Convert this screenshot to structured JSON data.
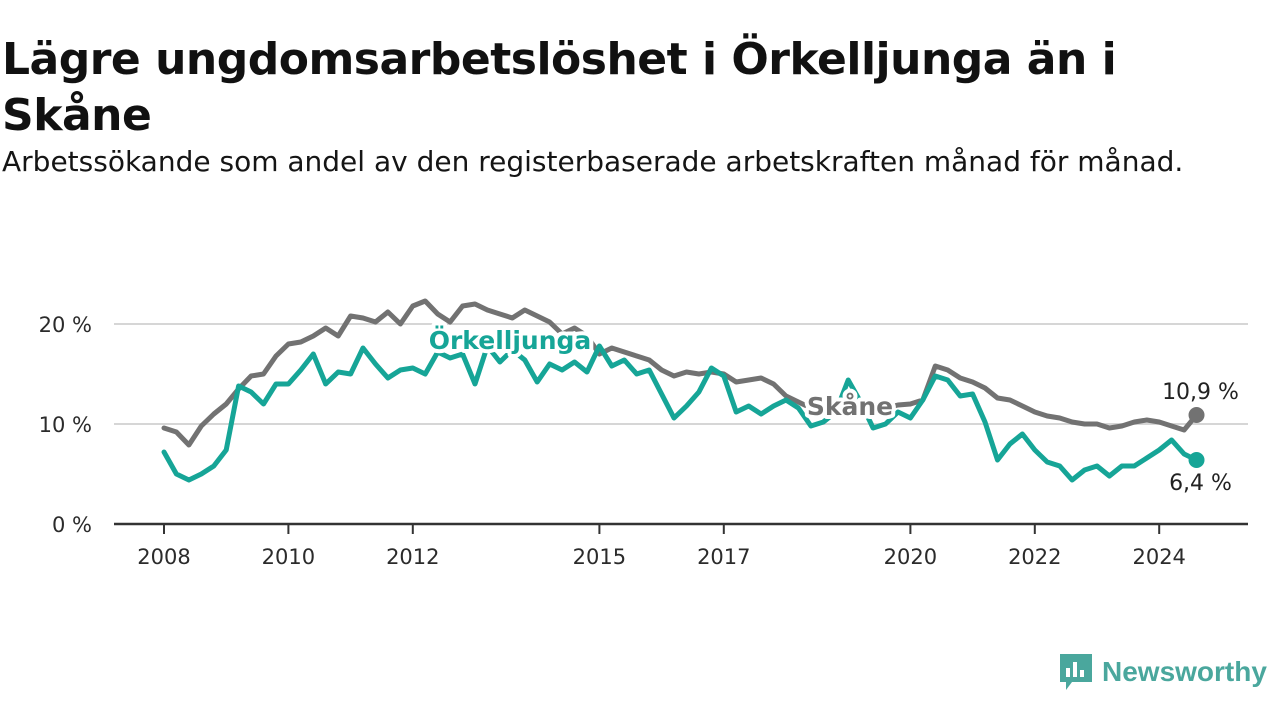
{
  "title": "Lägre ungdomsarbetslöshet i Örkelljunga än i Skåne",
  "subtitle": "Arbetssökande som andel av den registerbaserade arbetskraften månad för månad.",
  "brand": {
    "name": "Newsworthy",
    "color": "#4aa79d"
  },
  "chart_data": {
    "type": "line",
    "title": "Lägre ungdomsarbetslöshet i Örkelljunga än i Skåne",
    "xlabel": "",
    "ylabel": "",
    "xlim": [
      2008.0,
      2025.0
    ],
    "ylim": [
      0,
      23
    ],
    "y_ticks": [
      0,
      10,
      20
    ],
    "y_tick_labels": [
      "0 %",
      "10 %",
      "20 %"
    ],
    "x_ticks": [
      2008,
      2010,
      2012,
      2015,
      2017,
      2020,
      2022,
      2024
    ],
    "x_tick_labels": [
      "2008",
      "2010",
      "2012",
      "2015",
      "2017",
      "2020",
      "2022",
      "2024"
    ],
    "grid": true,
    "series": [
      {
        "name": "Skåne",
        "label": "Skåne",
        "color": "#727272",
        "end_label": "10,9 %",
        "points": [
          [
            2008.0,
            9.6
          ],
          [
            2008.2,
            9.2
          ],
          [
            2008.4,
            7.9
          ],
          [
            2008.6,
            9.8
          ],
          [
            2008.8,
            11.0
          ],
          [
            2009.0,
            12.0
          ],
          [
            2009.2,
            13.5
          ],
          [
            2009.4,
            14.8
          ],
          [
            2009.6,
            15.0
          ],
          [
            2009.8,
            16.8
          ],
          [
            2010.0,
            18.0
          ],
          [
            2010.2,
            18.2
          ],
          [
            2010.4,
            18.8
          ],
          [
            2010.6,
            19.6
          ],
          [
            2010.8,
            18.8
          ],
          [
            2011.0,
            20.8
          ],
          [
            2011.2,
            20.6
          ],
          [
            2011.4,
            20.2
          ],
          [
            2011.6,
            21.2
          ],
          [
            2011.8,
            20.0
          ],
          [
            2012.0,
            21.8
          ],
          [
            2012.2,
            22.3
          ],
          [
            2012.4,
            21.0
          ],
          [
            2012.6,
            20.2
          ],
          [
            2012.8,
            21.8
          ],
          [
            2013.0,
            22.0
          ],
          [
            2013.2,
            21.4
          ],
          [
            2013.4,
            21.0
          ],
          [
            2013.6,
            20.6
          ],
          [
            2013.8,
            21.4
          ],
          [
            2014.0,
            20.8
          ],
          [
            2014.2,
            20.2
          ],
          [
            2014.4,
            19.0
          ],
          [
            2014.6,
            19.6
          ],
          [
            2014.8,
            18.8
          ],
          [
            2015.0,
            17.0
          ],
          [
            2015.2,
            17.6
          ],
          [
            2015.4,
            17.2
          ],
          [
            2015.6,
            16.8
          ],
          [
            2015.8,
            16.4
          ],
          [
            2016.0,
            15.4
          ],
          [
            2016.2,
            14.8
          ],
          [
            2016.4,
            15.2
          ],
          [
            2016.6,
            15.0
          ],
          [
            2016.8,
            15.2
          ],
          [
            2017.0,
            15.0
          ],
          [
            2017.2,
            14.2
          ],
          [
            2017.4,
            14.4
          ],
          [
            2017.6,
            14.6
          ],
          [
            2017.8,
            14.0
          ],
          [
            2018.0,
            12.8
          ],
          [
            2018.2,
            12.2
          ],
          [
            2018.4,
            11.6
          ],
          [
            2018.6,
            11.8
          ],
          [
            2018.8,
            12.0
          ],
          [
            2019.0,
            12.2
          ],
          [
            2019.2,
            11.6
          ],
          [
            2019.4,
            11.2
          ],
          [
            2019.6,
            11.6
          ],
          [
            2019.8,
            11.9
          ],
          [
            2020.0,
            12.0
          ],
          [
            2020.2,
            12.4
          ],
          [
            2020.4,
            15.8
          ],
          [
            2020.6,
            15.4
          ],
          [
            2020.8,
            14.6
          ],
          [
            2021.0,
            14.2
          ],
          [
            2021.2,
            13.6
          ],
          [
            2021.4,
            12.6
          ],
          [
            2021.6,
            12.4
          ],
          [
            2021.8,
            11.8
          ],
          [
            2022.0,
            11.2
          ],
          [
            2022.2,
            10.8
          ],
          [
            2022.4,
            10.6
          ],
          [
            2022.6,
            10.2
          ],
          [
            2022.8,
            10.0
          ],
          [
            2023.0,
            10.0
          ],
          [
            2023.2,
            9.6
          ],
          [
            2023.4,
            9.8
          ],
          [
            2023.6,
            10.2
          ],
          [
            2023.8,
            10.4
          ],
          [
            2024.0,
            10.2
          ],
          [
            2024.2,
            9.8
          ],
          [
            2024.4,
            9.4
          ],
          [
            2024.6,
            10.9
          ]
        ]
      },
      {
        "name": "Örkelljunga",
        "label": "Örkelljunga",
        "color": "#16a597",
        "end_label": "6,4 %",
        "points": [
          [
            2008.0,
            7.2
          ],
          [
            2008.2,
            5.0
          ],
          [
            2008.4,
            4.4
          ],
          [
            2008.6,
            5.0
          ],
          [
            2008.8,
            5.8
          ],
          [
            2009.0,
            7.4
          ],
          [
            2009.2,
            13.8
          ],
          [
            2009.4,
            13.2
          ],
          [
            2009.6,
            12.0
          ],
          [
            2009.8,
            14.0
          ],
          [
            2010.0,
            14.0
          ],
          [
            2010.2,
            15.4
          ],
          [
            2010.4,
            17.0
          ],
          [
            2010.6,
            14.0
          ],
          [
            2010.8,
            15.2
          ],
          [
            2011.0,
            15.0
          ],
          [
            2011.2,
            17.6
          ],
          [
            2011.4,
            16.0
          ],
          [
            2011.6,
            14.6
          ],
          [
            2011.8,
            15.4
          ],
          [
            2012.0,
            15.6
          ],
          [
            2012.2,
            15.0
          ],
          [
            2012.4,
            17.2
          ],
          [
            2012.6,
            16.6
          ],
          [
            2012.8,
            17.0
          ],
          [
            2013.0,
            14.0
          ],
          [
            2013.2,
            17.8
          ],
          [
            2013.4,
            16.2
          ],
          [
            2013.6,
            17.4
          ],
          [
            2013.8,
            16.4
          ],
          [
            2014.0,
            14.2
          ],
          [
            2014.2,
            16.0
          ],
          [
            2014.4,
            15.4
          ],
          [
            2014.6,
            16.2
          ],
          [
            2014.8,
            15.2
          ],
          [
            2015.0,
            17.8
          ],
          [
            2015.2,
            15.8
          ],
          [
            2015.4,
            16.4
          ],
          [
            2015.6,
            15.0
          ],
          [
            2015.8,
            15.4
          ],
          [
            2016.0,
            13.0
          ],
          [
            2016.2,
            10.6
          ],
          [
            2016.4,
            11.8
          ],
          [
            2016.6,
            13.2
          ],
          [
            2016.8,
            15.6
          ],
          [
            2017.0,
            14.8
          ],
          [
            2017.2,
            11.2
          ],
          [
            2017.4,
            11.8
          ],
          [
            2017.6,
            11.0
          ],
          [
            2017.8,
            11.8
          ],
          [
            2018.0,
            12.4
          ],
          [
            2018.2,
            11.6
          ],
          [
            2018.4,
            9.8
          ],
          [
            2018.6,
            10.2
          ],
          [
            2018.8,
            11.2
          ],
          [
            2019.0,
            14.4
          ],
          [
            2019.2,
            12.2
          ],
          [
            2019.4,
            9.6
          ],
          [
            2019.6,
            10.0
          ],
          [
            2019.8,
            11.2
          ],
          [
            2020.0,
            10.6
          ],
          [
            2020.2,
            12.4
          ],
          [
            2020.4,
            14.8
          ],
          [
            2020.6,
            14.4
          ],
          [
            2020.8,
            12.8
          ],
          [
            2021.0,
            13.0
          ],
          [
            2021.2,
            10.2
          ],
          [
            2021.4,
            6.4
          ],
          [
            2021.6,
            8.0
          ],
          [
            2021.8,
            9.0
          ],
          [
            2022.0,
            7.4
          ],
          [
            2022.2,
            6.2
          ],
          [
            2022.4,
            5.8
          ],
          [
            2022.6,
            4.4
          ],
          [
            2022.8,
            5.4
          ],
          [
            2023.0,
            5.8
          ],
          [
            2023.2,
            4.8
          ],
          [
            2023.4,
            5.8
          ],
          [
            2023.6,
            5.8
          ],
          [
            2023.8,
            6.6
          ],
          [
            2024.0,
            7.4
          ],
          [
            2024.2,
            8.4
          ],
          [
            2024.4,
            7.0
          ],
          [
            2024.6,
            6.4
          ]
        ]
      }
    ]
  }
}
